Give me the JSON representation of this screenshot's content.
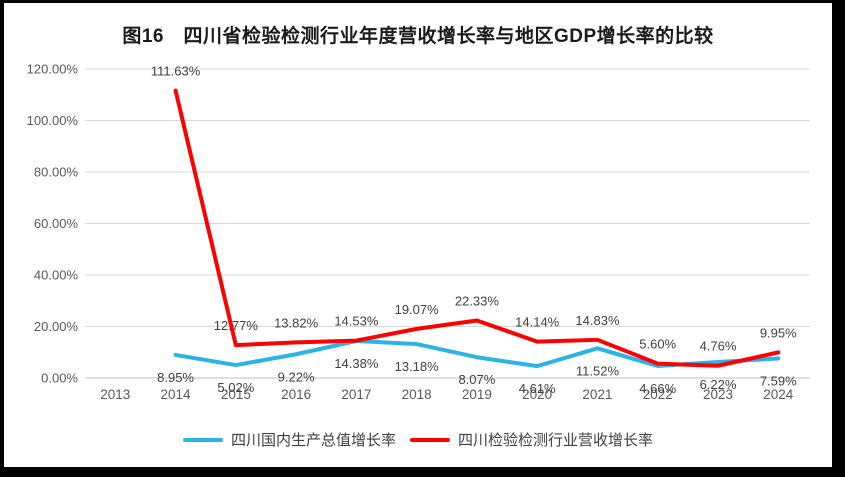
{
  "title": "图16　四川省检验检测行业年度营收增长率与地区GDP增长率的比较",
  "frame": {
    "border_color": "#000000",
    "background": "#ffffff"
  },
  "axis": {
    "tick_color": "#595959",
    "grid_color": "#d9d9d9",
    "axis_line_color": "#bfbfbf",
    "data_label_color": "#404040"
  },
  "chart_data": {
    "type": "line",
    "title": "图16　四川省检验检测行业年度营收增长率与地区GDP增长率的比较",
    "categories": [
      "2013",
      "2014",
      "2015",
      "2016",
      "2017",
      "2018",
      "2019",
      "2020",
      "2021",
      "2022",
      "2023",
      "2024"
    ],
    "y_ticks": [
      "120.00%",
      "100.00%",
      "80.00%",
      "60.00%",
      "40.00%",
      "20.00%",
      "0.00%"
    ],
    "ylim": [
      0,
      120
    ],
    "grid": true,
    "legend_position": "bottom",
    "series": [
      {
        "name": "四川国内生产总值增长率",
        "color": "#29b3e6",
        "label_position": "below",
        "values": [
          null,
          8.95,
          5.02,
          9.22,
          14.38,
          13.18,
          8.07,
          4.61,
          11.52,
          4.66,
          6.22,
          7.59
        ],
        "labels": [
          null,
          "8.95%",
          "5.02%",
          "9.22%",
          "14.38%",
          "13.18%",
          "8.07%",
          "4.61%",
          "11.52%",
          "4.66%",
          "6.22%",
          "7.59%"
        ]
      },
      {
        "name": "四川检验检测行业营收增长率",
        "color": "#fe0000",
        "label_position": "above",
        "values": [
          null,
          111.63,
          12.77,
          13.82,
          14.53,
          19.07,
          22.33,
          14.14,
          14.83,
          5.6,
          4.76,
          9.95
        ],
        "labels": [
          null,
          "111.63%",
          "12.77%",
          "13.82%",
          "14.53%",
          "19.07%",
          "22.33%",
          "14.14%",
          "14.83%",
          "5.60%",
          "4.76%",
          "9.95%"
        ]
      }
    ]
  }
}
